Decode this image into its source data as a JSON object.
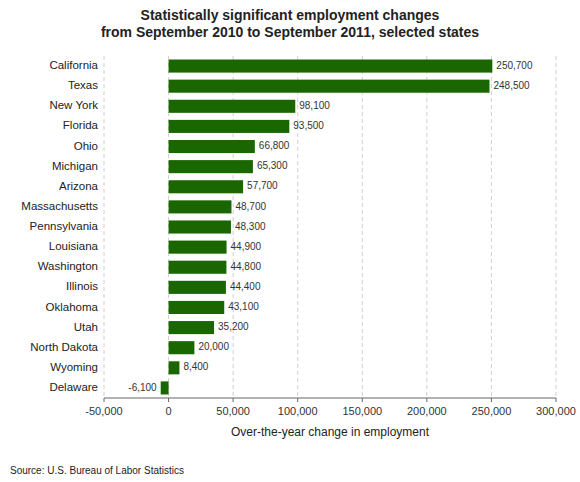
{
  "chart_data": {
    "type": "bar",
    "orientation": "horizontal",
    "title": "Statistically significant employment changes\nfrom September 2010 to September 2011, selected states",
    "categories": [
      "California",
      "Texas",
      "New York",
      "Florida",
      "Ohio",
      "Michigan",
      "Arizona",
      "Massachusetts",
      "Pennsylvania",
      "Louisiana",
      "Washington",
      "Illinois",
      "Oklahoma",
      "Utah",
      "North Dakota",
      "Wyoming",
      "Delaware"
    ],
    "values": [
      250700,
      248500,
      98100,
      93500,
      66800,
      65300,
      57700,
      48700,
      48300,
      44900,
      44800,
      44400,
      43100,
      35200,
      20000,
      8400,
      -6100
    ],
    "value_labels": [
      "250,700",
      "248,500",
      "98,100",
      "93,500",
      "66,800",
      "65,300",
      "57,700",
      "48,700",
      "48,300",
      "44,900",
      "44,800",
      "44,400",
      "43,100",
      "35,200",
      "20,000",
      "8,400",
      "-6,100"
    ],
    "data_labels": true,
    "color": "#1a6600",
    "xlabel": "Over-the-year change in employment",
    "source": "Source: U.S. Bureau of Labor Statistics",
    "xlim": [
      -50000,
      300000
    ],
    "xticks": [
      {
        "value": -50000,
        "label": "-50,000"
      },
      0,
      {
        "value": 50000,
        "label": "50,000"
      },
      {
        "value": 100000,
        "label": "100,000"
      },
      {
        "value": 150000,
        "label": "150,000"
      },
      {
        "value": 200000,
        "label": "200,000"
      },
      {
        "value": 250000,
        "label": "250,000"
      },
      {
        "value": 300000,
        "label": "300,000"
      }
    ],
    "grid": true
  }
}
